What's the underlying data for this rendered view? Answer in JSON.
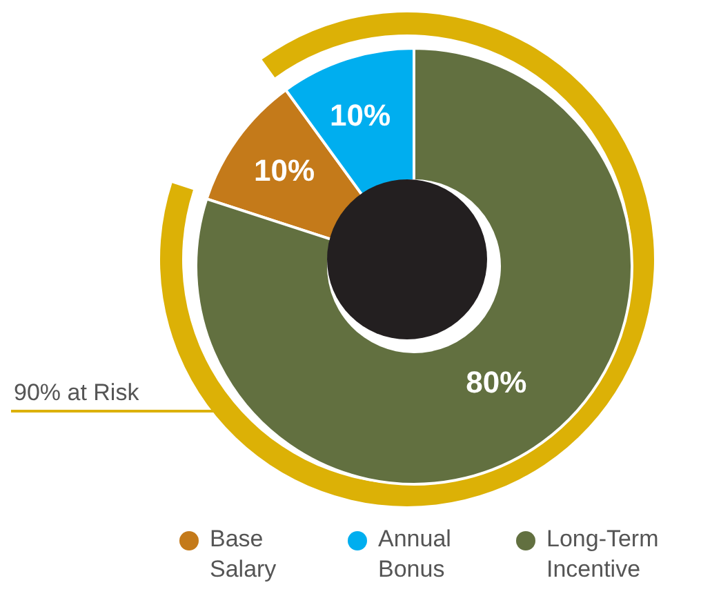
{
  "chart_data": {
    "type": "donut",
    "categories": [
      "Base Salary",
      "Annual Bonus",
      "Long-Term Incentive"
    ],
    "values": [
      10,
      10,
      80
    ],
    "colors": [
      "#c47a1a",
      "#00aeef",
      "#627040"
    ],
    "value_labels": [
      "10%",
      "10%",
      "80%"
    ],
    "annotations": [
      "90% at Risk"
    ],
    "legend": "bottom"
  }
}
